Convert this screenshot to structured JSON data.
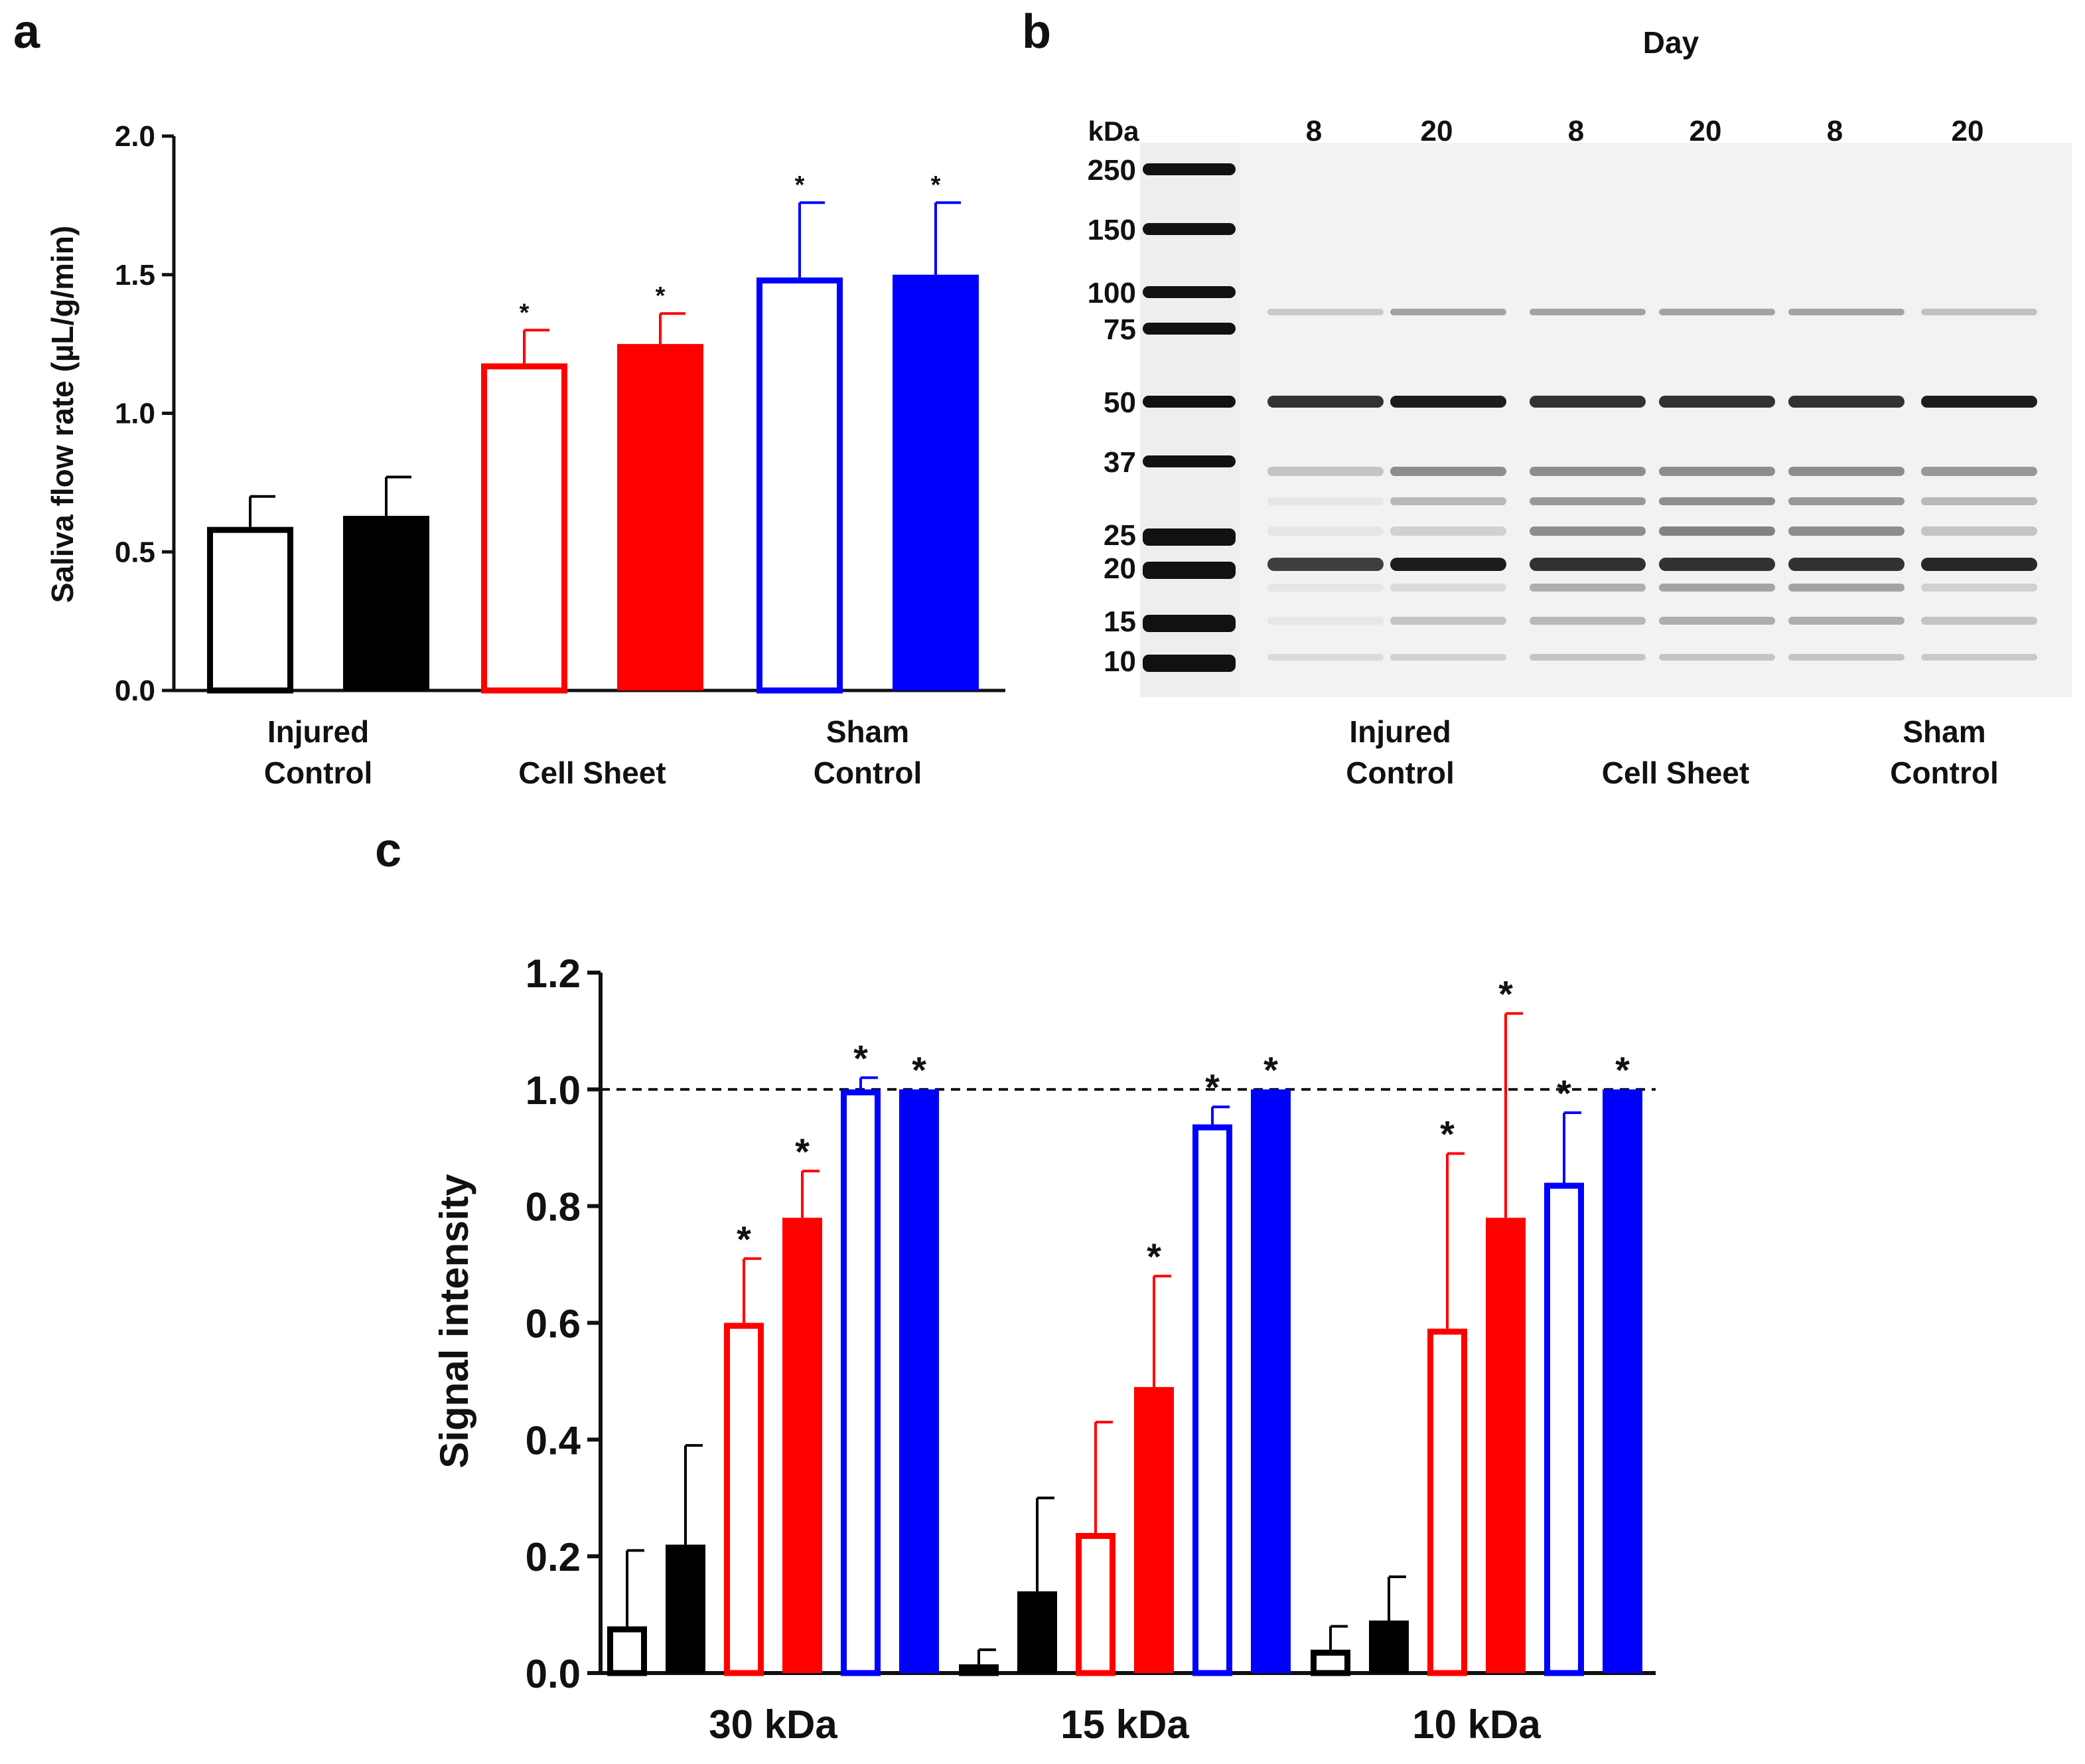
{
  "panels": {
    "a": {
      "label": "a"
    },
    "b": {
      "label": "b"
    },
    "c": {
      "label": "c"
    }
  },
  "colors": {
    "injured": "#000000",
    "cell_sheet": "#ff0000",
    "sham": "#0000ff",
    "gel_background": "#f2f2f2",
    "band": "#111111"
  },
  "chart_data": [
    {
      "panel": "a",
      "type": "bar",
      "ylabel": "Saliva flow rate (µL/g/min)",
      "ylim": [
        0,
        2.0
      ],
      "yticks": [
        "0.0",
        "0.5",
        "1.0",
        "1.5",
        "2.0"
      ],
      "groups": [
        {
          "label_lines": [
            "Injured",
            "Control"
          ],
          "color": "#000000"
        },
        {
          "label_lines": [
            "Cell Sheet"
          ],
          "color": "#ff0000"
        },
        {
          "label_lines": [
            "Sham",
            "Control"
          ],
          "color": "#0000ff"
        }
      ],
      "series": [
        {
          "name": "Day 8",
          "style": "open",
          "values": [
            0.59,
            1.18,
            1.49
          ],
          "errors": [
            0.11,
            0.12,
            0.27
          ],
          "significance": [
            "",
            "*",
            "*"
          ]
        },
        {
          "name": "Day 20",
          "style": "filled",
          "values": [
            0.63,
            1.25,
            1.5
          ],
          "errors": [
            0.14,
            0.11,
            0.26
          ],
          "significance": [
            "",
            "*",
            "*"
          ]
        }
      ]
    },
    {
      "panel": "b",
      "type": "gel",
      "title": "Day",
      "marker_unit": "kDa",
      "marker_values": [
        "250",
        "150",
        "100",
        "75",
        "50",
        "37",
        "25",
        "20",
        "15",
        "10"
      ],
      "lane_days": [
        "8",
        "20",
        "8",
        "20",
        "8",
        "20"
      ],
      "groups": [
        {
          "label_lines": [
            "Injured",
            "Control"
          ]
        },
        {
          "label_lines": [
            "Cell Sheet"
          ]
        },
        {
          "label_lines": [
            "Sham",
            "Control"
          ]
        }
      ]
    },
    {
      "panel": "c",
      "type": "bar",
      "ylabel": "Signal intensity",
      "ylim": [
        0,
        1.2
      ],
      "yticks": [
        "0.0",
        "0.2",
        "0.4",
        "0.6",
        "0.8",
        "1.0",
        "1.2"
      ],
      "reference_line": 1.0,
      "categories": [
        "30 kDa",
        "15 kDa",
        "10 kDa"
      ],
      "bar_order": [
        {
          "group": "Injured Control",
          "day": "8",
          "style": "open",
          "color": "#000000"
        },
        {
          "group": "Injured Control",
          "day": "20",
          "style": "filled",
          "color": "#000000"
        },
        {
          "group": "Cell Sheet",
          "day": "8",
          "style": "open",
          "color": "#ff0000"
        },
        {
          "group": "Cell Sheet",
          "day": "20",
          "style": "filled",
          "color": "#ff0000"
        },
        {
          "group": "Sham Control",
          "day": "8",
          "style": "open",
          "color": "#0000ff"
        },
        {
          "group": "Sham Control",
          "day": "20",
          "style": "filled",
          "color": "#0000ff"
        }
      ],
      "values": [
        [
          0.08,
          0.22,
          0.6,
          0.78,
          1.0,
          1.0
        ],
        [
          0.015,
          0.14,
          0.24,
          0.49,
          0.94,
          1.0
        ],
        [
          0.04,
          0.09,
          0.59,
          0.78,
          0.84,
          1.0
        ]
      ],
      "errors": [
        [
          0.13,
          0.17,
          0.11,
          0.08,
          0.02,
          0.0
        ],
        [
          0.025,
          0.16,
          0.19,
          0.19,
          0.03,
          0.0
        ],
        [
          0.04,
          0.075,
          0.3,
          0.35,
          0.12,
          0.0
        ]
      ],
      "significance": [
        [
          "",
          "",
          "*",
          "*",
          "*",
          "*"
        ],
        [
          "",
          "",
          "",
          "*",
          "*",
          "*"
        ],
        [
          "",
          "",
          "*",
          "*",
          "*",
          "*"
        ]
      ]
    }
  ]
}
